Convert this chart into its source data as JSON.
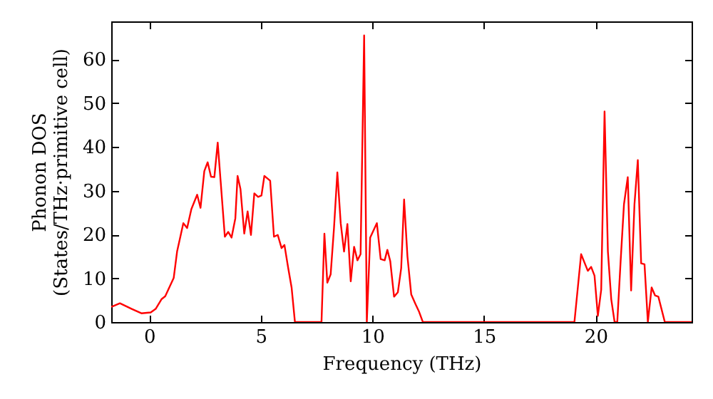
{
  "chart_data": {
    "type": "line",
    "xlabel": "Frequency (THz)",
    "ylabel": "Phonon DOS\n(States/THz·primitive cell)",
    "xlim": [
      -1.7,
      24.3
    ],
    "ylim": [
      0,
      68.7
    ],
    "xticks": [
      0,
      5,
      10,
      15,
      20
    ],
    "yticks": [
      0,
      10,
      20,
      30,
      40,
      50,
      60
    ],
    "grid": false,
    "marker": "none",
    "line_style": "solid",
    "series": [
      {
        "color": "#ff0000",
        "x": [
          -1.7,
          -1.63,
          -1.31,
          -0.78,
          -0.35,
          0.07,
          0.29,
          0.55,
          0.72,
          1.1,
          1.25,
          1.53,
          1.7,
          1.89,
          2.15,
          2.3,
          2.47,
          2.62,
          2.77,
          2.92,
          3.07,
          3.39,
          3.54,
          3.69,
          3.86,
          3.96,
          4.09,
          4.26,
          4.41,
          4.56,
          4.71,
          4.88,
          5.03,
          5.16,
          5.42,
          5.59,
          5.76,
          5.93,
          6.06,
          6.23,
          6.38,
          6.53,
          7.72,
          7.85,
          7.98,
          8.13,
          8.28,
          8.43,
          8.58,
          8.73,
          8.88,
          9.03,
          9.18,
          9.33,
          9.47,
          9.63,
          9.75,
          9.9,
          10.2,
          10.37,
          10.55,
          10.67,
          10.8,
          10.97,
          11.14,
          11.29,
          11.42,
          11.57,
          11.74,
          11.93,
          12.08,
          12.26,
          19.05,
          19.35,
          19.65,
          19.8,
          19.95,
          20.1,
          20.25,
          20.4,
          20.55,
          20.7,
          20.85,
          20.97,
          21.12,
          21.27,
          21.44,
          21.59,
          21.74,
          21.89,
          22.04,
          22.19,
          22.34,
          22.51,
          22.66,
          22.81,
          23.1,
          24.3
        ],
        "values": [
          3.5,
          3.6,
          4.3,
          3.0,
          2.0,
          2.2,
          3.0,
          5.2,
          5.9,
          10.1,
          16.1,
          22.6,
          21.5,
          25.8,
          29.1,
          26.1,
          34.5,
          36.5,
          33.2,
          33.1,
          41.0,
          19.5,
          20.6,
          19.3,
          23.7,
          33.4,
          30.4,
          20.2,
          25.3,
          19.9,
          29.4,
          28.6,
          28.9,
          33.4,
          32.3,
          19.5,
          19.9,
          16.9,
          17.6,
          12.3,
          7.9,
          0,
          0,
          20.2,
          9.0,
          10.9,
          21.5,
          34.2,
          22.6,
          16.1,
          22.4,
          9.3,
          17.2,
          14.1,
          15.5,
          65.5,
          0,
          19.3,
          22.6,
          14.4,
          14.1,
          16.5,
          13.9,
          5.8,
          6.8,
          12.3,
          28.0,
          15.0,
          6.3,
          4.1,
          2.5,
          0,
          0,
          15.5,
          11.7,
          12.6,
          10.6,
          1.4,
          7.4,
          48.1,
          16.1,
          5.2,
          0,
          0,
          13.9,
          26.9,
          33.1,
          7.2,
          26.9,
          37.0,
          13.4,
          13.2,
          0,
          7.9,
          6.1,
          5.8,
          0,
          0
        ]
      }
    ]
  }
}
